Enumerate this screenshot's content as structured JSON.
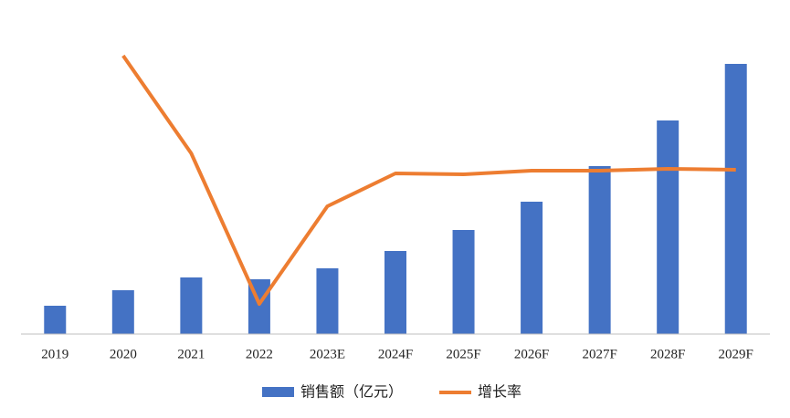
{
  "chart_data": {
    "type": "bar-line",
    "categories": [
      "2019",
      "2020",
      "2021",
      "2022",
      "2023E",
      "2024F",
      "2025F",
      "2026F",
      "2027F",
      "2028F",
      "2029F"
    ],
    "series": [
      {
        "name": "销售额（亿元）",
        "type": "bar",
        "color": "#4472c4",
        "values": [
          31,
          48,
          62,
          60,
          72,
          91,
          114,
          145,
          184,
          234,
          296
        ]
      },
      {
        "name": "增长率",
        "type": "line",
        "axis": "y2",
        "color": "#ed7d31",
        "values": [
          null,
          305,
          198,
          33,
          140,
          176,
          175,
          179,
          179,
          181,
          180
        ]
      }
    ],
    "ylim": [
      0,
      310
    ],
    "y2lim": [
      0,
      310
    ]
  }
}
